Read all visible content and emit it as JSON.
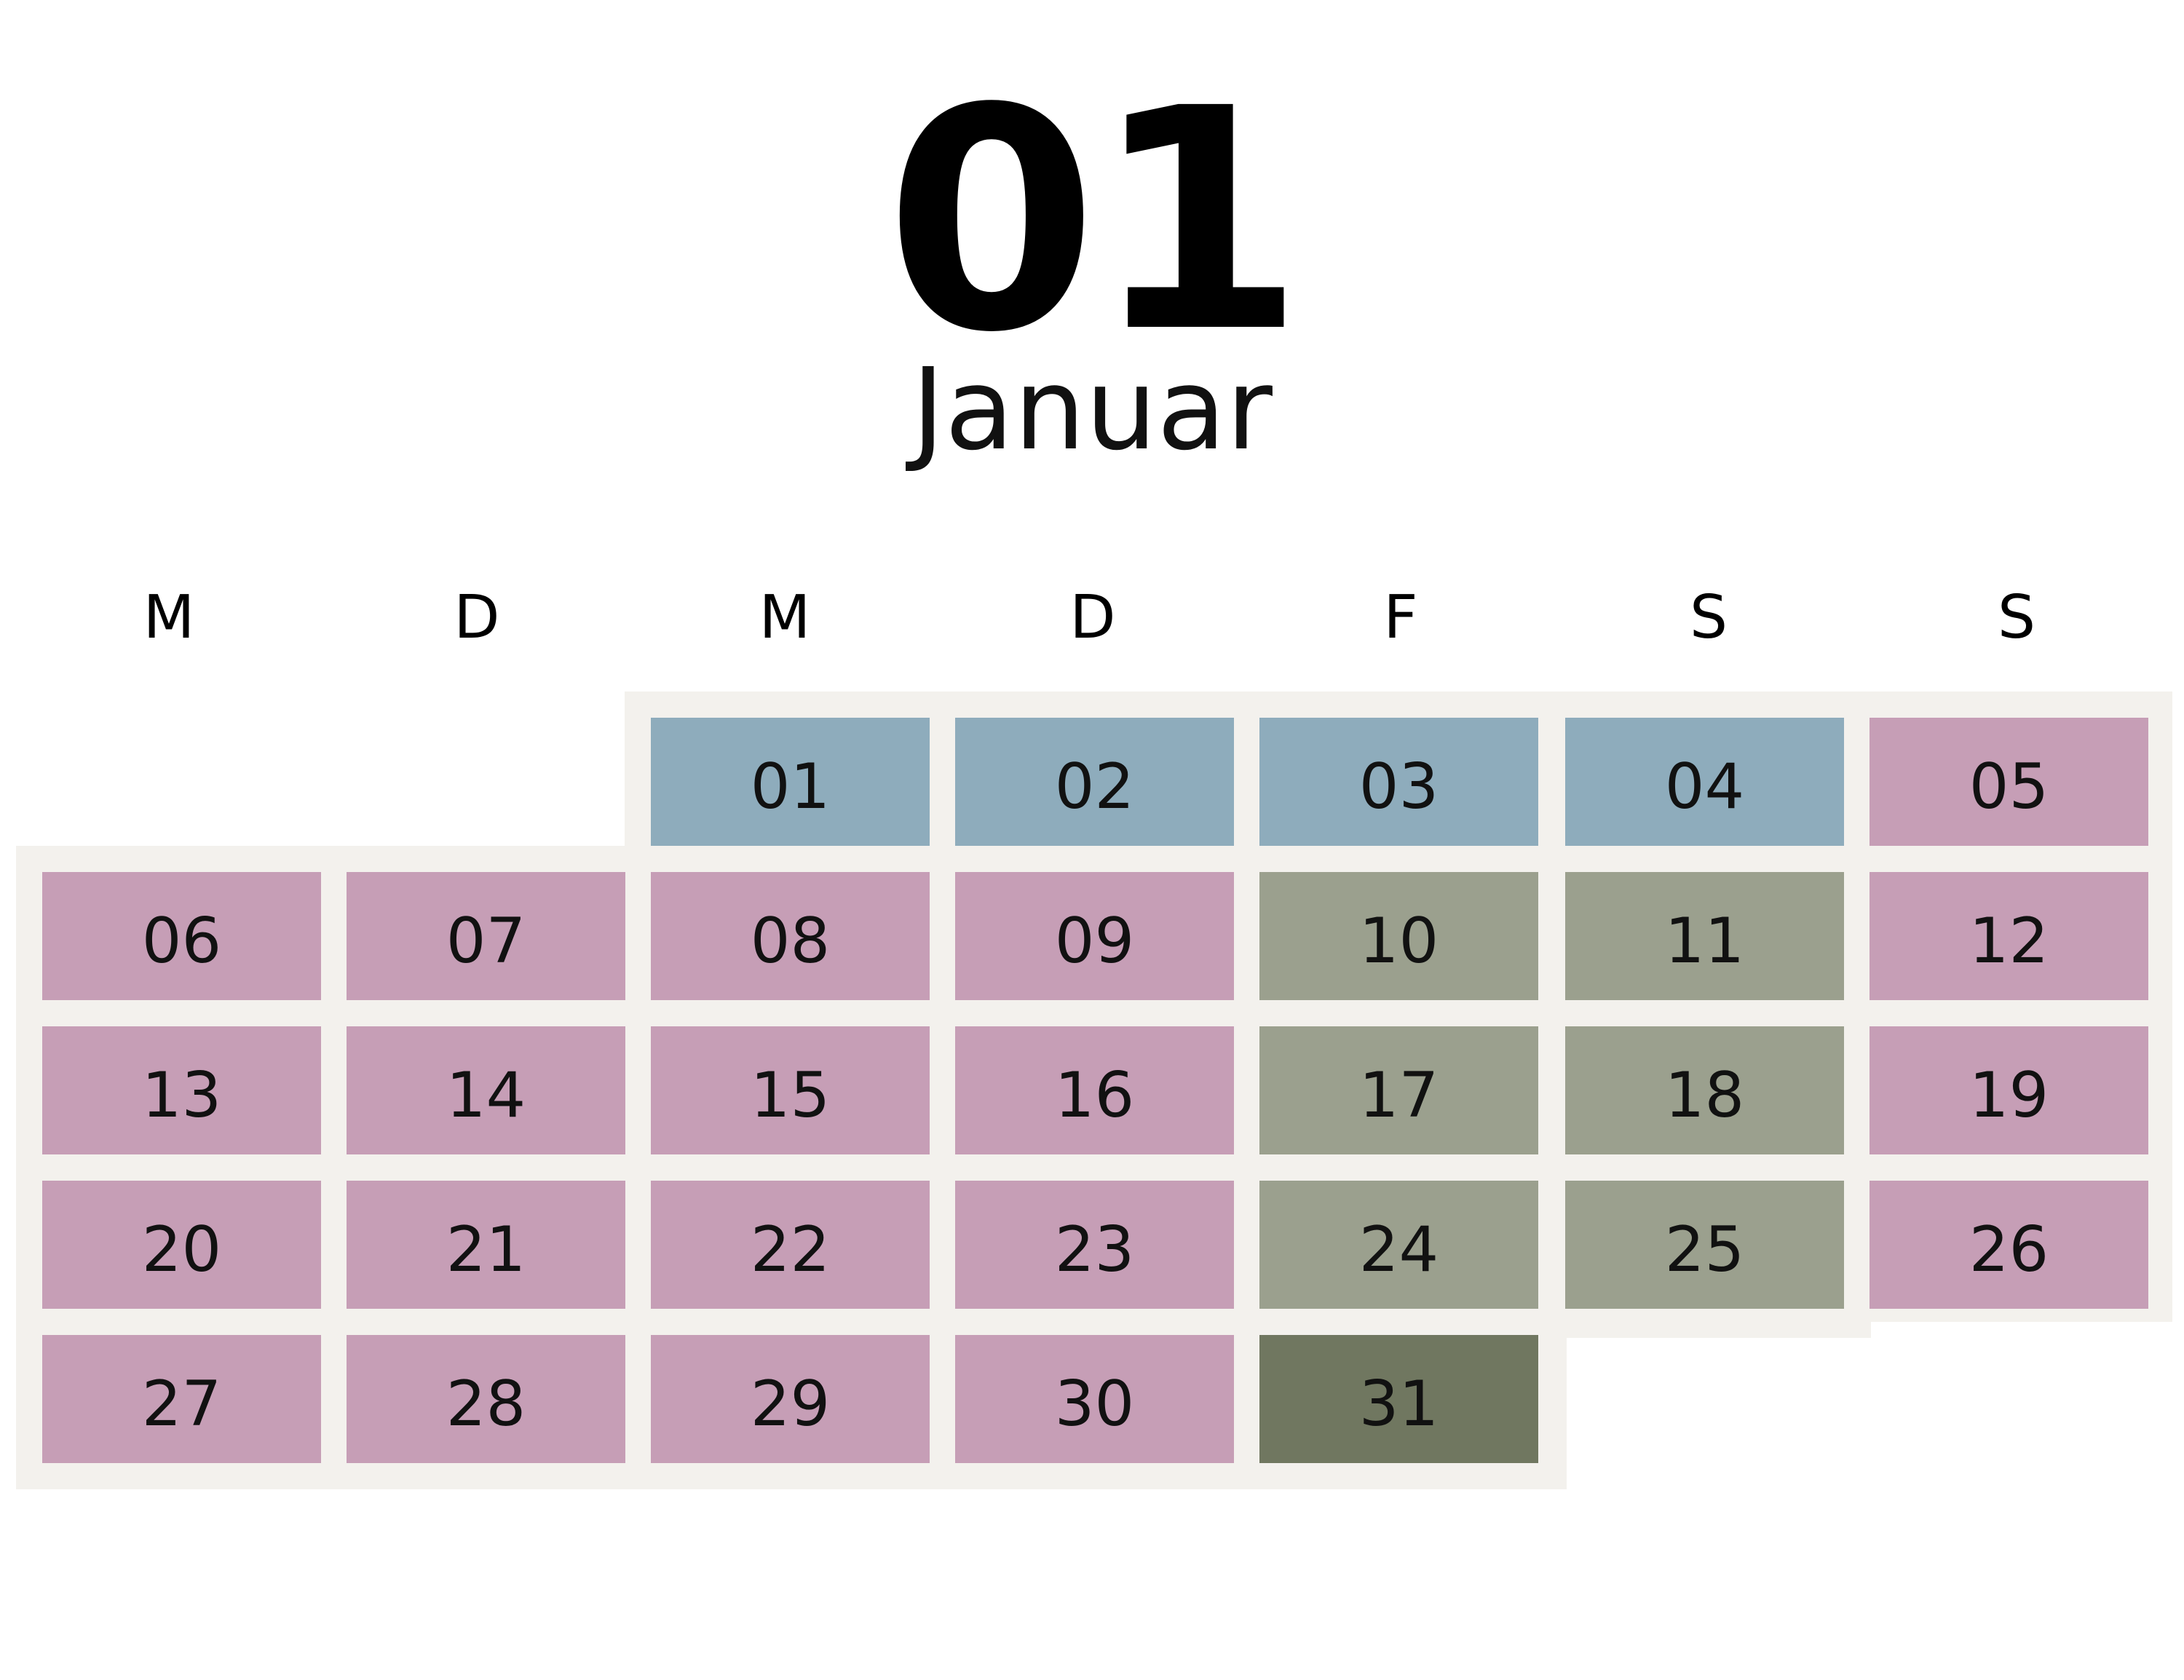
{
  "calendar": {
    "month_number": "01",
    "month_name": "Januar",
    "weekdays": [
      "M",
      "D",
      "M",
      "D",
      "F",
      "S",
      "S"
    ],
    "colors": {
      "blue": "#8eacbc",
      "pink": "#c69eb6",
      "sage": "#9ba08e",
      "olive": "#707760",
      "background": "#f3f1ed"
    },
    "first_weekday_index": 2,
    "days": [
      {
        "label": "01",
        "color": "blue"
      },
      {
        "label": "02",
        "color": "blue"
      },
      {
        "label": "03",
        "color": "blue"
      },
      {
        "label": "04",
        "color": "blue"
      },
      {
        "label": "05",
        "color": "pink"
      },
      {
        "label": "06",
        "color": "pink"
      },
      {
        "label": "07",
        "color": "pink"
      },
      {
        "label": "08",
        "color": "pink"
      },
      {
        "label": "09",
        "color": "pink"
      },
      {
        "label": "10",
        "color": "sage"
      },
      {
        "label": "11",
        "color": "sage"
      },
      {
        "label": "12",
        "color": "pink"
      },
      {
        "label": "13",
        "color": "pink"
      },
      {
        "label": "14",
        "color": "pink"
      },
      {
        "label": "15",
        "color": "pink"
      },
      {
        "label": "16",
        "color": "pink"
      },
      {
        "label": "17",
        "color": "sage"
      },
      {
        "label": "18",
        "color": "sage"
      },
      {
        "label": "19",
        "color": "pink"
      },
      {
        "label": "20",
        "color": "pink"
      },
      {
        "label": "21",
        "color": "pink"
      },
      {
        "label": "22",
        "color": "pink"
      },
      {
        "label": "23",
        "color": "pink"
      },
      {
        "label": "24",
        "color": "sage"
      },
      {
        "label": "25",
        "color": "sage"
      },
      {
        "label": "26",
        "color": "pink"
      },
      {
        "label": "27",
        "color": "pink"
      },
      {
        "label": "28",
        "color": "pink"
      },
      {
        "label": "29",
        "color": "pink"
      },
      {
        "label": "30",
        "color": "pink"
      },
      {
        "label": "31",
        "color": "olive"
      }
    ]
  }
}
